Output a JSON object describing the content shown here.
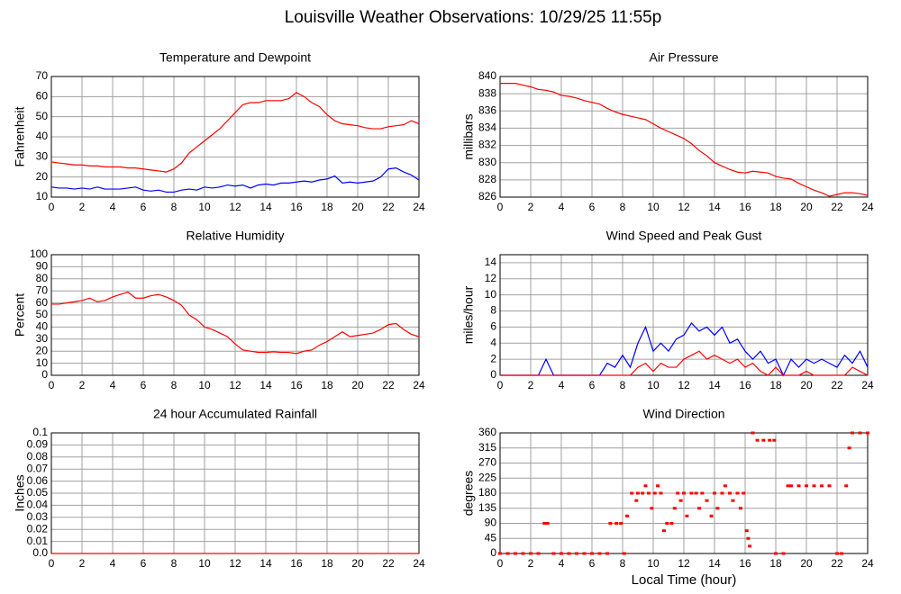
{
  "title": "Louisville Weather Observations: 10/29/25 11:55p",
  "chart_data": [
    {
      "type": "line",
      "title": "Temperature and Dewpoint",
      "ylabel": "Fahrenheit",
      "x": [
        0,
        0.5,
        1,
        1.5,
        2,
        2.5,
        3,
        3.5,
        4,
        4.5,
        5,
        5.5,
        6,
        6.5,
        7,
        7.5,
        8,
        8.5,
        9,
        9.5,
        10,
        10.5,
        11,
        11.5,
        12,
        12.5,
        13,
        13.5,
        14,
        14.5,
        15,
        15.5,
        16,
        16.5,
        17,
        17.5,
        18,
        18.5,
        19,
        19.5,
        20,
        20.5,
        21,
        21.5,
        22,
        22.5,
        23,
        23.5,
        24
      ],
      "series": [
        {
          "color": "#ff0000",
          "values": [
            27.5,
            27,
            26.5,
            26,
            26,
            25.5,
            25.5,
            25,
            25,
            25,
            24.5,
            24.5,
            24,
            23.5,
            23,
            22.5,
            24,
            27,
            32,
            35,
            38,
            41,
            44,
            48,
            52,
            56,
            57,
            57,
            58,
            58,
            58,
            59,
            62,
            60,
            57,
            55,
            51,
            48,
            46.5,
            46,
            45.5,
            44.5,
            44,
            44,
            45,
            45.5,
            46,
            48,
            46.5
          ]
        },
        {
          "color": "#0000ff",
          "values": [
            15,
            14.5,
            14.5,
            14,
            14.5,
            14,
            15,
            14,
            14,
            14,
            14.5,
            15,
            13.5,
            13,
            13.5,
            12.5,
            12.5,
            13.5,
            14,
            13.5,
            15,
            14.5,
            15,
            16,
            15.5,
            16,
            14.5,
            16,
            16.5,
            16,
            17,
            17,
            17.5,
            18,
            17.5,
            18.5,
            19,
            20.5,
            17,
            17.5,
            17,
            17.5,
            18,
            20,
            24,
            24.5,
            22.5,
            21,
            18.5
          ]
        }
      ],
      "xlim": [
        0,
        24
      ],
      "xticks": [
        0,
        2,
        4,
        6,
        8,
        10,
        12,
        14,
        16,
        18,
        20,
        22,
        24
      ],
      "ylim": [
        10,
        70
      ],
      "yticks": [
        10,
        20,
        30,
        40,
        50,
        60,
        70
      ],
      "grid": true
    },
    {
      "type": "line",
      "title": "Air Pressure",
      "ylabel": "millibars",
      "x": [
        0,
        0.5,
        1,
        1.5,
        2,
        2.5,
        3,
        3.5,
        4,
        4.5,
        5,
        5.5,
        6,
        6.5,
        7,
        7.5,
        8,
        8.5,
        9,
        9.5,
        10,
        10.5,
        11,
        11.5,
        12,
        12.5,
        13,
        13.5,
        14,
        14.5,
        15,
        15.5,
        16,
        16.5,
        17,
        17.5,
        18,
        18.5,
        19,
        19.5,
        20,
        20.5,
        21,
        21.5,
        22,
        22.5,
        23,
        23.5,
        24
      ],
      "series": [
        {
          "color": "#ff0000",
          "values": [
            839.2,
            839.2,
            839.2,
            839,
            838.8,
            838.5,
            838.4,
            838.2,
            837.8,
            837.7,
            837.5,
            837.2,
            837,
            836.8,
            836.3,
            835.9,
            835.6,
            835.4,
            835.2,
            835,
            834.5,
            834,
            833.6,
            833.2,
            832.8,
            832.2,
            831.4,
            830.8,
            830,
            829.6,
            829.2,
            828.9,
            828.8,
            829,
            828.9,
            828.8,
            828.4,
            828.2,
            828.1,
            827.6,
            827.2,
            826.8,
            826.5,
            826.1,
            826.3,
            826.5,
            826.5,
            826.4,
            826.2
          ]
        }
      ],
      "xlim": [
        0,
        24
      ],
      "xticks": [
        0,
        2,
        4,
        6,
        8,
        10,
        12,
        14,
        16,
        18,
        20,
        22,
        24
      ],
      "ylim": [
        826,
        840
      ],
      "yticks": [
        826,
        828,
        830,
        832,
        834,
        836,
        838,
        840
      ],
      "grid": true
    },
    {
      "type": "line",
      "title": "Relative Humidity",
      "ylabel": "Percent",
      "x": [
        0,
        0.5,
        1,
        1.5,
        2,
        2.5,
        3,
        3.5,
        4,
        4.5,
        5,
        5.5,
        6,
        6.5,
        7,
        7.5,
        8,
        8.5,
        9,
        9.5,
        10,
        10.5,
        11,
        11.5,
        12,
        12.5,
        13,
        13.5,
        14,
        14.5,
        15,
        15.5,
        16,
        16.5,
        17,
        17.5,
        18,
        18.5,
        19,
        19.5,
        20,
        20.5,
        21,
        21.5,
        22,
        22.5,
        23,
        23.5,
        24
      ],
      "series": [
        {
          "color": "#ff0000",
          "values": [
            59,
            59,
            60,
            61,
            62,
            64,
            61,
            62,
            65,
            67,
            69,
            64,
            64,
            66,
            67,
            65,
            62,
            58,
            50,
            46,
            40,
            38,
            35,
            32,
            26,
            21,
            20,
            19,
            19,
            19.5,
            19,
            19,
            18,
            20,
            21,
            25,
            28,
            32,
            36,
            32,
            33,
            34,
            35,
            38,
            42,
            43,
            38,
            34,
            32
          ]
        }
      ],
      "xlim": [
        0,
        24
      ],
      "xticks": [
        0,
        2,
        4,
        6,
        8,
        10,
        12,
        14,
        16,
        18,
        20,
        22,
        24
      ],
      "ylim": [
        0,
        100
      ],
      "yticks": [
        0,
        10,
        20,
        30,
        40,
        50,
        60,
        70,
        80,
        90,
        100
      ],
      "grid": true
    },
    {
      "type": "line",
      "title": "Wind Speed and Peak Gust",
      "ylabel": "miles/hour",
      "x": [
        0,
        0.5,
        1,
        1.5,
        2,
        2.5,
        3,
        3.5,
        4,
        4.5,
        5,
        5.5,
        6,
        6.5,
        7,
        7.5,
        8,
        8.5,
        9,
        9.5,
        10,
        10.5,
        11,
        11.5,
        12,
        12.5,
        13,
        13.5,
        14,
        14.5,
        15,
        15.5,
        16,
        16.5,
        17,
        17.5,
        18,
        18.5,
        19,
        19.5,
        20,
        20.5,
        21,
        21.5,
        22,
        22.5,
        23,
        23.5,
        24
      ],
      "series": [
        {
          "color": "#0000ff",
          "values": [
            0,
            0,
            0,
            0,
            0,
            0,
            2,
            0,
            0,
            0,
            0,
            0,
            0,
            0,
            1.5,
            1,
            2.5,
            1,
            4,
            6,
            3,
            4,
            3,
            4.5,
            5,
            6.5,
            5.5,
            6,
            5,
            6,
            4,
            4.5,
            3,
            2,
            3,
            1.5,
            2,
            0,
            2,
            1,
            2,
            1.5,
            2,
            1.5,
            1,
            2.5,
            1.5,
            3,
            1
          ]
        },
        {
          "color": "#ff0000",
          "values": [
            0,
            0,
            0,
            0,
            0,
            0,
            0,
            0,
            0,
            0,
            0,
            0,
            0,
            0,
            0,
            0,
            0,
            0,
            1,
            1.5,
            0.5,
            1.5,
            1,
            1,
            2,
            2.5,
            3,
            2,
            2.5,
            2,
            1.5,
            2,
            1,
            1.5,
            0.5,
            0,
            1,
            0,
            0,
            0,
            0.5,
            0,
            0,
            0,
            0,
            0,
            1,
            0.5,
            0
          ]
        }
      ],
      "xlim": [
        0,
        24
      ],
      "xticks": [
        0,
        2,
        4,
        6,
        8,
        10,
        12,
        14,
        16,
        18,
        20,
        22,
        24
      ],
      "ylim": [
        0,
        15
      ],
      "yticks": [
        0,
        2,
        4,
        6,
        8,
        10,
        12,
        14
      ],
      "grid": true
    },
    {
      "type": "line",
      "title": "24 hour Accumulated Rainfall",
      "ylabel": "Inches",
      "x": [
        0,
        24
      ],
      "series": [
        {
          "color": "#ff0000",
          "values": [
            0,
            0
          ]
        }
      ],
      "xlim": [
        0,
        24
      ],
      "xticks": [
        0,
        2,
        4,
        6,
        8,
        10,
        12,
        14,
        16,
        18,
        20,
        22,
        24
      ],
      "ylim": [
        0,
        0.1
      ],
      "yticks": [
        {
          "value": 0,
          "label": "0.0"
        },
        0.01,
        0.02,
        0.03,
        0.04,
        0.05,
        0.06,
        0.07,
        0.08,
        0.09,
        0.1
      ],
      "grid": true
    },
    {
      "type": "scatter",
      "title": "Wind Direction",
      "ylabel": "degrees",
      "xlabel": "Local Time (hour)",
      "x": [
        0,
        0.5,
        1,
        1.5,
        2,
        2.5,
        2.9,
        3.1,
        3.5,
        4,
        4.5,
        5,
        5.5,
        6,
        6.5,
        7,
        7.2,
        7.6,
        7.9,
        8.1,
        8.3,
        8.6,
        8.9,
        9,
        9.3,
        9.5,
        9.7,
        9.9,
        10.1,
        10.3,
        10.5,
        10.7,
        10.9,
        11.2,
        11.4,
        11.6,
        11.8,
        12,
        12.2,
        12.5,
        12.8,
        13,
        13.2,
        13.5,
        13.8,
        14,
        14.2,
        14.5,
        14.7,
        15,
        15.2,
        15.5,
        15.7,
        15.9,
        16.1,
        16.2,
        16.3,
        16.5,
        16.8,
        17.2,
        17.6,
        17.9,
        18,
        18.5,
        18.8,
        19,
        19.5,
        20,
        20.5,
        21,
        21.5,
        22,
        22.3,
        22.6,
        22.8,
        23,
        23.5,
        24
      ],
      "series": [
        {
          "color": "#ff0000",
          "values": [
            0,
            0,
            0,
            0,
            0,
            0,
            90,
            90,
            0,
            0,
            0,
            0,
            0,
            0,
            0,
            0,
            90,
            90,
            90,
            0,
            112,
            180,
            158,
            180,
            180,
            202,
            180,
            135,
            180,
            202,
            180,
            68,
            90,
            90,
            135,
            180,
            158,
            180,
            112,
            180,
            180,
            135,
            180,
            158,
            112,
            180,
            135,
            180,
            202,
            180,
            158,
            180,
            135,
            180,
            68,
            45,
            22,
            360,
            338,
            338,
            338,
            338,
            0,
            0,
            202,
            202,
            202,
            202,
            202,
            202,
            202,
            0,
            0,
            202,
            315,
            360,
            360,
            360
          ]
        }
      ],
      "xlim": [
        0,
        24
      ],
      "xticks": [
        0,
        2,
        4,
        6,
        8,
        10,
        12,
        14,
        16,
        18,
        20,
        22,
        24
      ],
      "ylim": [
        0,
        360
      ],
      "yticks": [
        0,
        45,
        90,
        135,
        180,
        225,
        270,
        315,
        360
      ],
      "grid": true
    }
  ]
}
